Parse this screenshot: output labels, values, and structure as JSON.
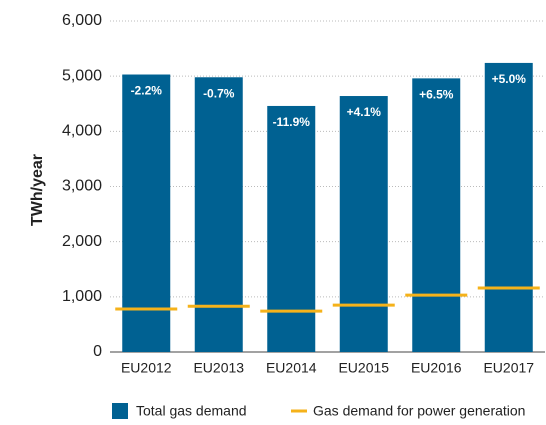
{
  "chart_data": {
    "type": "bar",
    "ylabel": "TWh/year",
    "categories": [
      "EU2012",
      "EU2013",
      "EU2014",
      "EU2015",
      "EU2016",
      "EU2017"
    ],
    "series": [
      {
        "name": "Total gas demand",
        "color": "#006192",
        "values": [
          5030,
          4980,
          4460,
          4640,
          4960,
          5240
        ]
      },
      {
        "name": "Gas demand for power generation",
        "color": "#f5b21a",
        "marker": "hline",
        "values": [
          780,
          830,
          740,
          850,
          1030,
          1160
        ]
      }
    ],
    "annotations": [
      "-2.2%",
      "-0.7%",
      "-11.9%",
      "+4.1%",
      "+6.5%",
      "+5.0%"
    ],
    "ylim": [
      0,
      6000
    ],
    "yticks": [
      0,
      {
        "value": 1000,
        "label": "1,000"
      },
      {
        "value": 2000,
        "label": "2,000"
      },
      {
        "value": 3000,
        "label": "3,000"
      },
      {
        "value": 4000,
        "label": "4,000"
      },
      {
        "value": 5000,
        "label": "5,000"
      },
      {
        "value": 6000,
        "label": "6,000"
      }
    ],
    "grid": true
  }
}
